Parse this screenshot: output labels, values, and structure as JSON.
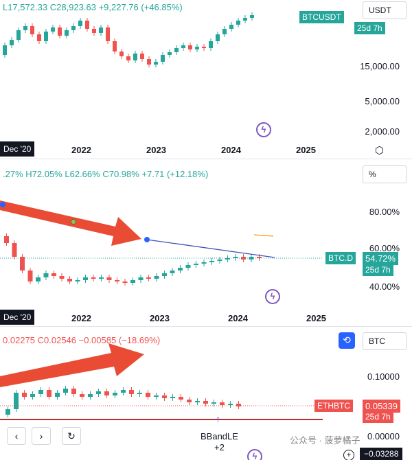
{
  "panel1": {
    "ohlc": {
      "l": "L17,572.33",
      "c": "C28,923.63",
      "chg": "+9,227.76 (+46.85%)"
    },
    "unit_label": "USDT",
    "symbol_tag": "BTCUSDT",
    "countdown": "25d 7h",
    "y_labels": [
      "15,000.00",
      "5,000.00",
      "2,000.00"
    ],
    "x_start": "Dec '20",
    "x_labels": [
      "2022",
      "2023",
      "2024",
      "2025"
    ],
    "settings_icon": "hexagon-settings-icon"
  },
  "panel2": {
    "ohlc": {
      "o": ".27%",
      "h": "H72.05%",
      "l": "L62.66%",
      "c": "C70.98%",
      "chg": "+7.71 (+12.18%)"
    },
    "unit_label": "%",
    "symbol_tag": "BTC.D",
    "price_tag": "54.72%",
    "countdown": "25d 7h",
    "y_labels": [
      "80.00%",
      "60.00%",
      "40.00%"
    ],
    "x_start": "Dec '20",
    "x_labels": [
      "2022",
      "2023",
      "2024",
      "2025"
    ]
  },
  "panel3": {
    "ohlc": {
      "l": "0.02275",
      "c": "C0.02546",
      "chg": "−0.00585 (−18.69%)"
    },
    "unit_label": "BTC",
    "symbol_tag": "ETHBTC",
    "price_tag": "0.05339",
    "countdown": "25d 7h",
    "y_labels": [
      "0.10000",
      "0.00000"
    ],
    "last_label": "−0.03288",
    "signal_name": "BBandLE",
    "signal_value": "+2",
    "watermark": "公众号 · 菠萝橘子"
  },
  "colors": {
    "up": "#26a69a",
    "down": "#ef5350",
    "tag_green": "#26a69a",
    "tag_red": "#ef5350",
    "arrow": "#e8412a",
    "purple": "#7e57c2"
  },
  "chart_data": [
    {
      "type": "candlestick",
      "title": "BTCUSDT",
      "x_ticks": [
        "2022",
        "2023",
        "2024",
        "2025"
      ],
      "y_ticks": [
        2000,
        5000,
        15000
      ],
      "y_scale": "log",
      "last_close": 28923.63,
      "change": 9227.76,
      "change_pct": 46.85
    },
    {
      "type": "candlestick",
      "title": "BTC.D",
      "x_ticks": [
        "2022",
        "2023",
        "2024",
        "2025"
      ],
      "y_ticks": [
        40,
        60,
        80
      ],
      "y_unit": "%",
      "last_value": 54.72,
      "ohlc": {
        "h": 72.05,
        "l": 62.66,
        "c": 70.98
      },
      "change": 7.71,
      "change_pct": 12.18
    },
    {
      "type": "candlestick",
      "title": "ETHBTC",
      "y_ticks": [
        0.0,
        0.1
      ],
      "last_value": 0.05339,
      "ohlc": {
        "c": 0.02546
      },
      "change": -0.00585,
      "change_pct": -18.69
    }
  ]
}
